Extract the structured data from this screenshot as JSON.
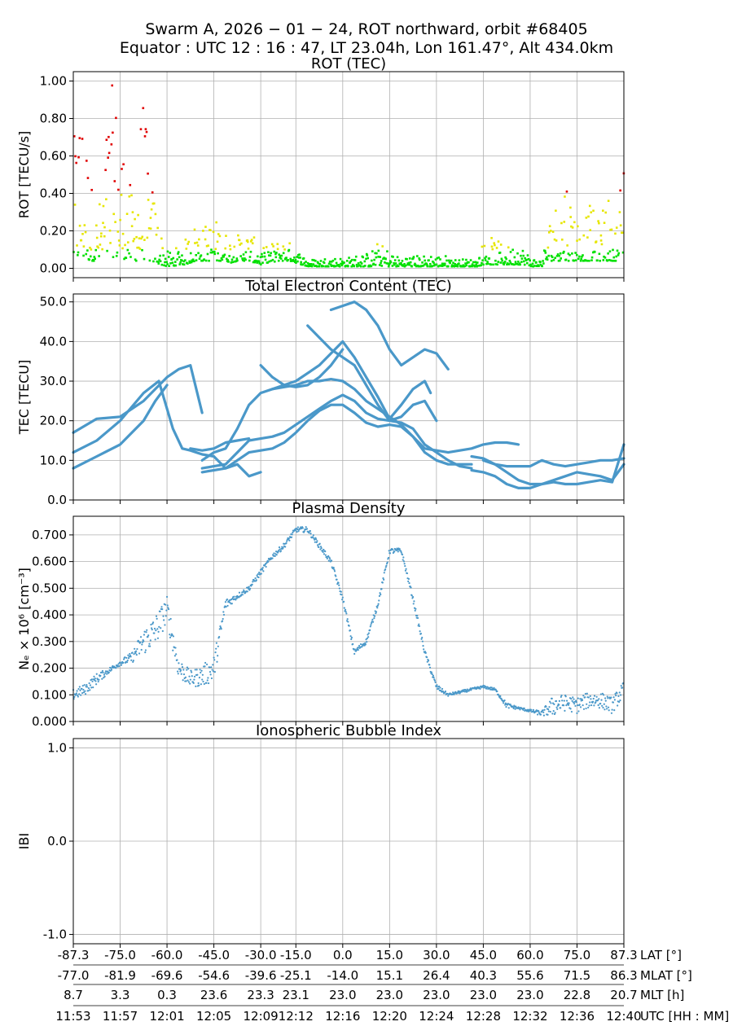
{
  "title": {
    "line1": "Swarm A,  2026 − 01 − 24,  ROT northward,  orbit #68405",
    "line2": "Equator :  UTC 12 : 16 : 47,  LT 23.04h,  Lon 161.47°,  Alt 434.0km"
  },
  "colors": {
    "rot_low": "#00e000",
    "rot_mid": "#e6e600",
    "rot_high": "#e00000",
    "series": "#4a98c9",
    "grid": "#b0b0b0"
  },
  "x_axis": {
    "range": [
      0,
      47
    ],
    "ticks": [
      0,
      4,
      8,
      12,
      16,
      19,
      23,
      27,
      31,
      35,
      39,
      43,
      47
    ],
    "rows": [
      {
        "label": "LAT [°]",
        "values": [
          "-87.3",
          "-75.0",
          "-60.0",
          "-45.0",
          "-30.0",
          "-15.0",
          "0.0",
          "15.0",
          "30.0",
          "45.0",
          "60.0",
          "75.0",
          "87.3"
        ]
      },
      {
        "label": "MLAT [°]",
        "values": [
          "-77.0",
          "-81.9",
          "-69.6",
          "-54.6",
          "-39.6",
          "-25.1",
          "-14.0",
          "15.1",
          "26.4",
          "40.3",
          "55.6",
          "71.5",
          "86.3"
        ]
      },
      {
        "label": "MLT [h]",
        "values": [
          "8.7",
          "3.3",
          "0.3",
          "23.6",
          "23.3",
          "23.1",
          "23.0",
          "23.0",
          "23.0",
          "23.0",
          "23.0",
          "22.8",
          "20.7"
        ]
      },
      {
        "label": "UTC [HH : MM]",
        "values": [
          "11:53",
          "11:57",
          "12:01",
          "12:05",
          "12:09",
          "12:12",
          "12:16",
          "12:20",
          "12:24",
          "12:28",
          "12:32",
          "12:36",
          "12:40"
        ]
      }
    ]
  },
  "chart_data": [
    {
      "type": "scatter",
      "title": "ROT (TEC)",
      "ylabel": "ROT [TECU/s]",
      "ylim": [
        -0.05,
        1.05
      ],
      "yticks": [
        0.0,
        0.2,
        0.4,
        0.6,
        0.8,
        1.0
      ],
      "ytick_labels": [
        "0.00",
        "0.20",
        "0.40",
        "0.60",
        "0.80",
        "1.00"
      ],
      "color_thresholds": {
        "mid": 0.1,
        "high": 0.4
      },
      "envelope": {
        "x": [
          0,
          0.5,
          1.0,
          1.5,
          2.0,
          2.5,
          3.0,
          3.5,
          4.0,
          4.5,
          5.0,
          5.5,
          6.0,
          6.5,
          7.0,
          7.5,
          8.0,
          8.5,
          9.0,
          9.5,
          10.0,
          10.5,
          11.0,
          11.5,
          12.0,
          12.5,
          13.0,
          13.5,
          14.0,
          14.5,
          15.0,
          15.5,
          16.0,
          16.5,
          17.0,
          17.5,
          18.0,
          18.5,
          19.0,
          19.5,
          20.0,
          20.5,
          21.0,
          21.5,
          22.0,
          22.5,
          23.0,
          23.5,
          24.0,
          24.5,
          25.0,
          25.5,
          26.0,
          26.5,
          27.0,
          27.5,
          28.0,
          28.5,
          29.0,
          29.5,
          30.0,
          30.5,
          31.0,
          31.5,
          32.0,
          32.5,
          33.0,
          33.5,
          34.0,
          34.5,
          35.0,
          35.5,
          36.0,
          36.5,
          37.0,
          37.5,
          38.0,
          38.5,
          39.0,
          39.5,
          40.0,
          40.5,
          41.0,
          41.5,
          42.0,
          42.5,
          43.0,
          43.5,
          44.0,
          44.5,
          45.0,
          45.5,
          46.0,
          46.5,
          47.0
        ],
        "max": [
          0.65,
          1.0,
          0.85,
          0.5,
          0.3,
          0.45,
          0.95,
          1.0,
          0.85,
          0.6,
          0.4,
          0.7,
          1.0,
          0.5,
          0.4,
          0.2,
          0.09,
          0.1,
          0.12,
          0.15,
          0.2,
          0.26,
          0.22,
          0.25,
          0.28,
          0.24,
          0.2,
          0.16,
          0.18,
          0.2,
          0.2,
          0.16,
          0.1,
          0.12,
          0.14,
          0.15,
          0.15,
          0.14,
          0.1,
          0.08,
          0.05,
          0.05,
          0.05,
          0.06,
          0.06,
          0.06,
          0.06,
          0.06,
          0.07,
          0.08,
          0.08,
          0.1,
          0.14,
          0.12,
          0.1,
          0.07,
          0.06,
          0.07,
          0.07,
          0.07,
          0.07,
          0.08,
          0.07,
          0.07,
          0.07,
          0.05,
          0.05,
          0.05,
          0.05,
          0.05,
          0.15,
          0.18,
          0.15,
          0.14,
          0.12,
          0.12,
          0.16,
          0.1,
          0.07,
          0.05,
          0.05,
          0.2,
          0.4,
          0.3,
          0.6,
          0.4,
          0.3,
          0.2,
          0.35,
          0.3,
          0.25,
          0.5,
          0.2,
          0.3,
          0.75
        ],
        "min": [
          0.04,
          0.05,
          0.05,
          0.04,
          0.04,
          0.05,
          0.06,
          0.06,
          0.05,
          0.05,
          0.04,
          0.04,
          0.05,
          0.04,
          0.03,
          0.02,
          0.01,
          0.01,
          0.02,
          0.02,
          0.03,
          0.04,
          0.04,
          0.04,
          0.04,
          0.04,
          0.04,
          0.03,
          0.04,
          0.04,
          0.04,
          0.03,
          0.02,
          0.03,
          0.03,
          0.04,
          0.04,
          0.04,
          0.03,
          0.02,
          0.01,
          0.01,
          0.01,
          0.01,
          0.01,
          0.01,
          0.01,
          0.01,
          0.01,
          0.01,
          0.01,
          0.01,
          0.02,
          0.01,
          0.01,
          0.01,
          0.01,
          0.01,
          0.01,
          0.01,
          0.01,
          0.01,
          0.01,
          0.01,
          0.01,
          0.01,
          0.01,
          0.01,
          0.01,
          0.01,
          0.02,
          0.02,
          0.02,
          0.02,
          0.02,
          0.02,
          0.02,
          0.02,
          0.01,
          0.01,
          0.01,
          0.04,
          0.04,
          0.04,
          0.04,
          0.04,
          0.04,
          0.04,
          0.04,
          0.04,
          0.04,
          0.04,
          0.04,
          0.04,
          0.04
        ],
        "points_per_unit": 18
      }
    },
    {
      "type": "line",
      "title": "Total Electron Content (TEC)",
      "ylabel": "TEC [TECU]",
      "ylim": [
        0,
        52
      ],
      "yticks": [
        0,
        10,
        20,
        30,
        40,
        50
      ],
      "ytick_labels": [
        "0.0",
        "10.0",
        "20.0",
        "30.0",
        "40.0",
        "50.0"
      ],
      "series": [
        {
          "x": [
            0,
            2,
            4,
            6,
            7,
            8,
            9,
            10,
            11
          ],
          "y": [
            17,
            20.5,
            21,
            25,
            28,
            31,
            33,
            34,
            22
          ]
        },
        {
          "x": [
            0,
            2,
            4,
            6,
            7.3,
            8.5,
            9.3,
            10,
            11,
            12,
            13,
            14,
            15,
            16
          ],
          "y": [
            12,
            15,
            20,
            27,
            30,
            18,
            13,
            12.5,
            11.5,
            11,
            8,
            9,
            6,
            7
          ]
        },
        {
          "x": [
            0,
            2,
            4,
            6,
            7,
            8
          ],
          "y": [
            8,
            11,
            14,
            20,
            25,
            29
          ]
        },
        {
          "x": [
            10,
            11,
            12,
            13,
            14,
            15
          ],
          "y": [
            13,
            12.5,
            13,
            14.5,
            15,
            15.5
          ]
        },
        {
          "x": [
            11,
            12,
            13,
            14,
            15,
            16,
            17,
            18,
            19,
            20,
            21,
            22,
            23,
            24,
            25,
            26,
            27,
            28,
            29,
            30,
            31,
            32,
            33,
            34,
            35,
            36,
            37,
            38
          ],
          "y": [
            10,
            12,
            13,
            18,
            24,
            27,
            28,
            28.5,
            29,
            30,
            30,
            30.5,
            30,
            28,
            25,
            23,
            21,
            19,
            16,
            13,
            12.5,
            12,
            12.5,
            13,
            14,
            14.5,
            14.5,
            14
          ]
        },
        {
          "x": [
            11,
            12,
            13,
            14,
            15,
            16,
            17,
            18,
            19,
            20,
            21,
            22,
            23,
            24,
            25,
            26,
            27,
            28,
            29,
            30,
            31,
            32,
            33,
            34
          ],
          "y": [
            8,
            8.5,
            9,
            12,
            15,
            15.5,
            16,
            17,
            19,
            21,
            23,
            25,
            26.5,
            25,
            22,
            20.5,
            20,
            19.5,
            18,
            14,
            12,
            10,
            8.5,
            8
          ]
        },
        {
          "x": [
            11,
            12,
            13,
            14,
            15,
            16,
            17,
            18,
            19,
            20,
            21,
            22,
            23,
            24,
            25,
            26,
            27,
            28,
            29,
            30,
            31,
            32,
            33,
            34
          ],
          "y": [
            7,
            7.5,
            8,
            10,
            12,
            12.5,
            13,
            14.5,
            17,
            20,
            22.5,
            24,
            24,
            22,
            19.5,
            18.5,
            19,
            18.5,
            16,
            12,
            10,
            9,
            9,
            9
          ]
        },
        {
          "x": [
            16,
            17,
            18,
            19,
            20,
            21,
            22,
            23
          ],
          "y": [
            34,
            31,
            29,
            28.5,
            29,
            31,
            34,
            38
          ]
        },
        {
          "x": [
            17,
            18,
            19,
            20,
            21,
            22,
            23,
            24,
            25,
            26,
            27,
            28,
            29,
            30,
            30.5
          ],
          "y": [
            28,
            29,
            30,
            32,
            34,
            37,
            40,
            36,
            31,
            26,
            20.5,
            24,
            28,
            30,
            27
          ]
        },
        {
          "x": [
            20,
            21,
            22,
            23,
            24,
            25,
            26,
            27,
            28,
            29,
            30,
            31
          ],
          "y": [
            44,
            41,
            38,
            36,
            34,
            29,
            24,
            20,
            21,
            24,
            25,
            20
          ]
        },
        {
          "x": [
            22,
            23,
            24,
            25,
            26,
            27,
            28,
            29,
            30,
            31,
            32
          ],
          "y": [
            48,
            49,
            50,
            48,
            44,
            38,
            34,
            36,
            38,
            37,
            33
          ]
        },
        {
          "x": [
            34,
            35,
            36,
            37,
            38,
            39,
            40,
            41,
            42,
            43,
            44,
            45,
            46,
            47
          ],
          "y": [
            7.5,
            7,
            6,
            4,
            3,
            3,
            4,
            4.5,
            4,
            4,
            4.5,
            5,
            4.5,
            14
          ]
        },
        {
          "x": [
            34,
            35,
            36,
            37,
            38,
            39,
            40,
            41,
            42,
            43,
            44,
            45,
            46,
            47
          ],
          "y": [
            11,
            10.5,
            9,
            7,
            5,
            4,
            4,
            5,
            6,
            7,
            6.5,
            6,
            5,
            9
          ]
        },
        {
          "x": [
            35,
            36,
            37,
            38,
            39,
            40,
            41,
            42,
            43,
            44,
            45,
            46,
            47
          ],
          "y": [
            10,
            9,
            8.5,
            8.5,
            8.5,
            10,
            9,
            8.5,
            9,
            9.5,
            10,
            10,
            10.5
          ]
        }
      ]
    },
    {
      "type": "scatter",
      "title": "Plasma Density",
      "ylabel": "Nₑ × 10⁶ [cm⁻³]",
      "ylim": [
        0,
        0.77
      ],
      "yticks": [
        0,
        0.1,
        0.2,
        0.3,
        0.4,
        0.5,
        0.6,
        0.7
      ],
      "ytick_labels": [
        "0.000",
        "0.100",
        "0.200",
        "0.300",
        "0.400",
        "0.500",
        "0.600",
        "0.700"
      ],
      "x": [
        0,
        1,
        2,
        3,
        4,
        5,
        6,
        7,
        8,
        9,
        10,
        11,
        12,
        13,
        14,
        15,
        16,
        17,
        18,
        19,
        20,
        21,
        22,
        23,
        24,
        25,
        26,
        27,
        28,
        29,
        30,
        31,
        32,
        33,
        34,
        35,
        36,
        37,
        38,
        39,
        40,
        41,
        42,
        43,
        44,
        45,
        46,
        47
      ],
      "y": [
        0.1,
        0.12,
        0.16,
        0.19,
        0.22,
        0.24,
        0.3,
        0.34,
        0.42,
        0.2,
        0.16,
        0.17,
        0.2,
        0.44,
        0.47,
        0.5,
        0.56,
        0.62,
        0.66,
        0.72,
        0.72,
        0.66,
        0.6,
        0.46,
        0.26,
        0.3,
        0.44,
        0.64,
        0.64,
        0.46,
        0.26,
        0.13,
        0.1,
        0.11,
        0.12,
        0.13,
        0.12,
        0.06,
        0.05,
        0.04,
        0.03,
        0.06,
        0.07,
        0.06,
        0.08,
        0.08,
        0.06,
        0.12
      ],
      "noise": [
        0.02,
        0.02,
        0.02,
        0.01,
        0.01,
        0.02,
        0.05,
        0.06,
        0.05,
        0.04,
        0.03,
        0.04,
        0.05,
        0.02,
        0.01,
        0.01,
        0.01,
        0.01,
        0.01,
        0.01,
        0.01,
        0.01,
        0.01,
        0.01,
        0.01,
        0.01,
        0.01,
        0.01,
        0.01,
        0.01,
        0.01,
        0.01,
        0.005,
        0.005,
        0.005,
        0.005,
        0.005,
        0.01,
        0.005,
        0.005,
        0.01,
        0.04,
        0.03,
        0.03,
        0.03,
        0.03,
        0.03,
        0.03
      ]
    },
    {
      "type": "scatter",
      "title": "Ionospheric Bubble Index",
      "ylabel": "IBI",
      "ylim": [
        -1.1,
        1.1
      ],
      "yticks": [
        -1.0,
        0.0,
        1.0
      ],
      "ytick_labels": [
        "-1.0",
        "0.0",
        "1.0"
      ],
      "x": [],
      "y": []
    }
  ]
}
